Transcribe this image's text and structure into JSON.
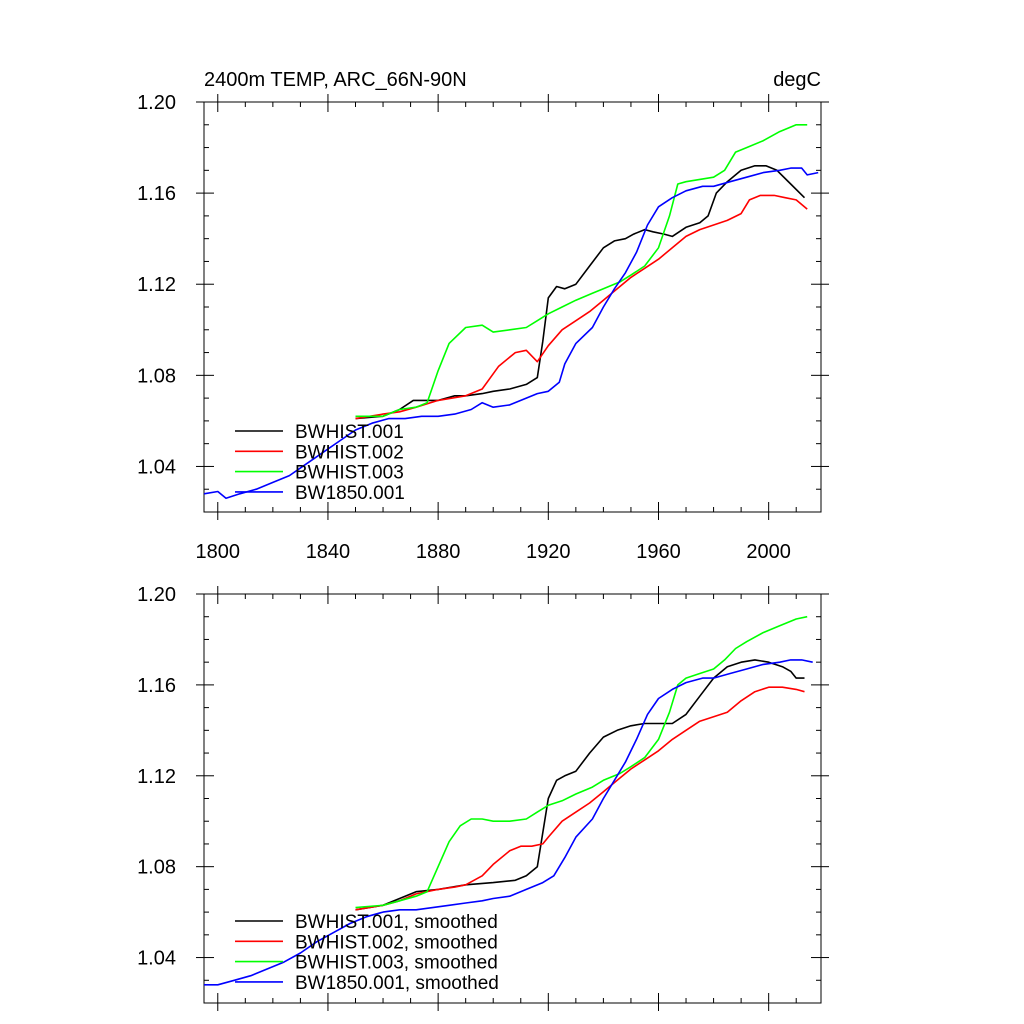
{
  "chart_data": [
    {
      "type": "line",
      "title": "2400m TEMP, ARC_66N-90N",
      "units": "degC",
      "xlim": [
        1795,
        2019
      ],
      "ylim": [
        1.02,
        1.2
      ],
      "x_ticks": [
        "1800",
        "1840",
        "1880",
        "1920",
        "1960",
        "2000"
      ],
      "y_ticks": [
        "1.20",
        "1.16",
        "1.12",
        "1.08",
        "1.04"
      ],
      "series": [
        {
          "name": "BWHIST.001",
          "color": "#000000",
          "x": [
            1850,
            1860,
            1866,
            1871,
            1880,
            1886,
            1890,
            1896,
            1900,
            1906,
            1912,
            1916,
            1918,
            1920,
            1923,
            1926,
            1930,
            1935,
            1940,
            1944,
            1948,
            1951,
            1955,
            1958,
            1962,
            1965,
            1970,
            1975,
            1978,
            1981,
            1985,
            1990,
            1995,
            1999,
            2003,
            2008,
            2013
          ],
          "y": [
            1.061,
            1.062,
            1.065,
            1.069,
            1.069,
            1.071,
            1.071,
            1.072,
            1.073,
            1.074,
            1.076,
            1.079,
            1.095,
            1.114,
            1.119,
            1.118,
            1.12,
            1.128,
            1.136,
            1.139,
            1.14,
            1.142,
            1.144,
            1.143,
            1.142,
            1.141,
            1.145,
            1.147,
            1.15,
            1.16,
            1.165,
            1.17,
            1.172,
            1.172,
            1.17,
            1.164,
            1.158
          ]
        },
        {
          "name": "BWHIST.002",
          "color": "#ff0000",
          "x": [
            1850,
            1860,
            1866,
            1872,
            1880,
            1890,
            1896,
            1902,
            1908,
            1912,
            1916,
            1920,
            1925,
            1930,
            1935,
            1940,
            1945,
            1950,
            1955,
            1960,
            1966,
            1970,
            1975,
            1980,
            1985,
            1990,
            1993,
            1997,
            2002,
            2006,
            2010,
            2014
          ],
          "y": [
            1.061,
            1.063,
            1.064,
            1.066,
            1.069,
            1.071,
            1.074,
            1.084,
            1.09,
            1.091,
            1.086,
            1.093,
            1.1,
            1.104,
            1.108,
            1.113,
            1.118,
            1.123,
            1.127,
            1.131,
            1.137,
            1.141,
            1.144,
            1.146,
            1.148,
            1.151,
            1.157,
            1.159,
            1.159,
            1.158,
            1.157,
            1.153
          ]
        },
        {
          "name": "BWHIST.003",
          "color": "#00ff00",
          "x": [
            1850,
            1860,
            1866,
            1872,
            1876,
            1880,
            1884,
            1890,
            1896,
            1900,
            1906,
            1912,
            1916,
            1920,
            1925,
            1930,
            1936,
            1940,
            1946,
            1950,
            1955,
            1960,
            1964,
            1967,
            1970,
            1975,
            1980,
            1984,
            1988,
            1992,
            1998,
            2004,
            2010,
            2014
          ],
          "y": [
            1.062,
            1.062,
            1.065,
            1.066,
            1.068,
            1.082,
            1.094,
            1.101,
            1.102,
            1.099,
            1.1,
            1.101,
            1.104,
            1.107,
            1.11,
            1.113,
            1.116,
            1.118,
            1.121,
            1.124,
            1.128,
            1.136,
            1.15,
            1.164,
            1.165,
            1.166,
            1.167,
            1.17,
            1.178,
            1.18,
            1.183,
            1.187,
            1.19,
            1.19
          ]
        },
        {
          "name": "BW1850.001",
          "color": "#0000ff",
          "x": [
            1795,
            1800,
            1803,
            1808,
            1814,
            1820,
            1826,
            1832,
            1838,
            1844,
            1850,
            1856,
            1862,
            1868,
            1874,
            1880,
            1886,
            1892,
            1896,
            1900,
            1906,
            1912,
            1916,
            1920,
            1924,
            1926,
            1930,
            1936,
            1940,
            1944,
            1948,
            1952,
            1956,
            1960,
            1965,
            1970,
            1976,
            1980,
            1986,
            1992,
            1998,
            2004,
            2008,
            2012,
            2014,
            2018
          ],
          "y": [
            1.028,
            1.029,
            1.026,
            1.028,
            1.03,
            1.033,
            1.036,
            1.041,
            1.046,
            1.051,
            1.056,
            1.059,
            1.061,
            1.061,
            1.062,
            1.062,
            1.063,
            1.065,
            1.068,
            1.066,
            1.067,
            1.07,
            1.072,
            1.073,
            1.077,
            1.085,
            1.094,
            1.101,
            1.11,
            1.118,
            1.125,
            1.134,
            1.146,
            1.154,
            1.158,
            1.161,
            1.163,
            1.163,
            1.165,
            1.167,
            1.169,
            1.17,
            1.171,
            1.171,
            1.168,
            1.169
          ]
        }
      ]
    },
    {
      "type": "line",
      "xlim": [
        1795,
        2019
      ],
      "ylim": [
        1.02,
        1.2
      ],
      "y_ticks": [
        "1.20",
        "1.16",
        "1.12",
        "1.08",
        "1.04"
      ],
      "series": [
        {
          "name": "BWHIST.001, smoothed",
          "color": "#000000",
          "x": [
            1850,
            1860,
            1866,
            1872,
            1880,
            1890,
            1900,
            1908,
            1912,
            1916,
            1918,
            1920,
            1923,
            1926,
            1930,
            1935,
            1940,
            1945,
            1950,
            1955,
            1960,
            1965,
            1970,
            1975,
            1980,
            1985,
            1990,
            1995,
            2000,
            2005,
            2008,
            2010,
            2013
          ],
          "y": [
            1.061,
            1.063,
            1.066,
            1.069,
            1.07,
            1.072,
            1.073,
            1.074,
            1.076,
            1.08,
            1.095,
            1.11,
            1.118,
            1.12,
            1.122,
            1.13,
            1.137,
            1.14,
            1.142,
            1.143,
            1.143,
            1.143,
            1.147,
            1.155,
            1.163,
            1.168,
            1.17,
            1.171,
            1.17,
            1.168,
            1.166,
            1.163,
            1.163
          ]
        },
        {
          "name": "BWHIST.002, smoothed",
          "color": "#ff0000",
          "x": [
            1850,
            1860,
            1866,
            1872,
            1880,
            1886,
            1890,
            1896,
            1900,
            1906,
            1910,
            1914,
            1918,
            1920,
            1925,
            1930,
            1935,
            1940,
            1945,
            1950,
            1955,
            1960,
            1965,
            1970,
            1975,
            1980,
            1985,
            1990,
            1995,
            2000,
            2005,
            2010,
            2013
          ],
          "y": [
            1.061,
            1.063,
            1.065,
            1.068,
            1.07,
            1.071,
            1.072,
            1.076,
            1.081,
            1.087,
            1.089,
            1.089,
            1.09,
            1.093,
            1.1,
            1.104,
            1.108,
            1.113,
            1.118,
            1.123,
            1.127,
            1.131,
            1.136,
            1.14,
            1.144,
            1.146,
            1.148,
            1.153,
            1.157,
            1.159,
            1.159,
            1.158,
            1.157
          ]
        },
        {
          "name": "BWHIST.003, smoothed",
          "color": "#00ff00",
          "x": [
            1850,
            1860,
            1866,
            1872,
            1876,
            1880,
            1884,
            1888,
            1892,
            1896,
            1900,
            1906,
            1912,
            1916,
            1920,
            1925,
            1930,
            1936,
            1940,
            1946,
            1950,
            1955,
            1960,
            1964,
            1967,
            1970,
            1975,
            1980,
            1984,
            1988,
            1992,
            1998,
            2004,
            2010,
            2014
          ],
          "y": [
            1.062,
            1.063,
            1.065,
            1.067,
            1.069,
            1.08,
            1.091,
            1.098,
            1.101,
            1.101,
            1.1,
            1.1,
            1.101,
            1.104,
            1.107,
            1.109,
            1.112,
            1.115,
            1.118,
            1.121,
            1.124,
            1.128,
            1.136,
            1.148,
            1.16,
            1.163,
            1.165,
            1.167,
            1.171,
            1.176,
            1.179,
            1.183,
            1.186,
            1.189,
            1.19
          ]
        },
        {
          "name": "BW1850.001, smoothed",
          "color": "#0000ff",
          "x": [
            1795,
            1800,
            1806,
            1812,
            1818,
            1824,
            1830,
            1836,
            1842,
            1848,
            1854,
            1860,
            1866,
            1872,
            1878,
            1884,
            1890,
            1896,
            1900,
            1906,
            1912,
            1918,
            1922,
            1926,
            1930,
            1936,
            1940,
            1944,
            1948,
            1952,
            1956,
            1960,
            1965,
            1970,
            1976,
            1980,
            1986,
            1992,
            1998,
            2004,
            2008,
            2012,
            2016
          ],
          "y": [
            1.028,
            1.028,
            1.03,
            1.032,
            1.035,
            1.038,
            1.042,
            1.047,
            1.051,
            1.055,
            1.058,
            1.06,
            1.061,
            1.061,
            1.062,
            1.063,
            1.064,
            1.065,
            1.066,
            1.067,
            1.07,
            1.073,
            1.076,
            1.084,
            1.093,
            1.101,
            1.11,
            1.118,
            1.126,
            1.136,
            1.147,
            1.154,
            1.158,
            1.161,
            1.163,
            1.163,
            1.165,
            1.167,
            1.169,
            1.17,
            1.171,
            1.171,
            1.17
          ]
        }
      ]
    }
  ]
}
